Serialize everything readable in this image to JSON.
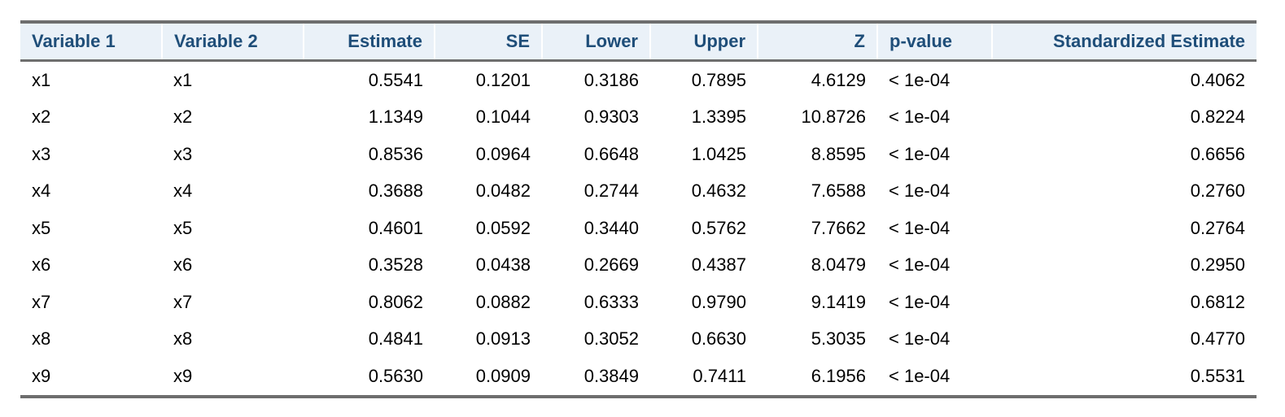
{
  "table": {
    "headers": [
      "Variable 1",
      "Variable 2",
      "Estimate",
      "SE",
      "Lower",
      "Upper",
      "Z",
      "p-value",
      "Standardized Estimate"
    ],
    "rows": [
      [
        "x1",
        "x1",
        "0.5541",
        "0.1201",
        "0.3186",
        "0.7895",
        "4.6129",
        "< 1e-04",
        "0.4062"
      ],
      [
        "x2",
        "x2",
        "1.1349",
        "0.1044",
        "0.9303",
        "1.3395",
        "10.8726",
        "< 1e-04",
        "0.8224"
      ],
      [
        "x3",
        "x3",
        "0.8536",
        "0.0964",
        "0.6648",
        "1.0425",
        "8.8595",
        "< 1e-04",
        "0.6656"
      ],
      [
        "x4",
        "x4",
        "0.3688",
        "0.0482",
        "0.2744",
        "0.4632",
        "7.6588",
        "< 1e-04",
        "0.2760"
      ],
      [
        "x5",
        "x5",
        "0.4601",
        "0.0592",
        "0.3440",
        "0.5762",
        "7.7662",
        "< 1e-04",
        "0.2764"
      ],
      [
        "x6",
        "x6",
        "0.3528",
        "0.0438",
        "0.2669",
        "0.4387",
        "8.0479",
        "< 1e-04",
        "0.2950"
      ],
      [
        "x7",
        "x7",
        "0.8062",
        "0.0882",
        "0.6333",
        "0.9790",
        "9.1419",
        "< 1e-04",
        "0.6812"
      ],
      [
        "x8",
        "x8",
        "0.4841",
        "0.0913",
        "0.3052",
        "0.6630",
        "5.3035",
        "< 1e-04",
        "0.4770"
      ],
      [
        "x9",
        "x9",
        "0.5630",
        "0.0909",
        "0.3849",
        "0.7411",
        "6.1956",
        "< 1e-04",
        "0.5531"
      ]
    ]
  },
  "colors": {
    "header_text": "#1f4e79",
    "header_bg": "#eaf1f8",
    "rule": "#6e6e6e"
  }
}
